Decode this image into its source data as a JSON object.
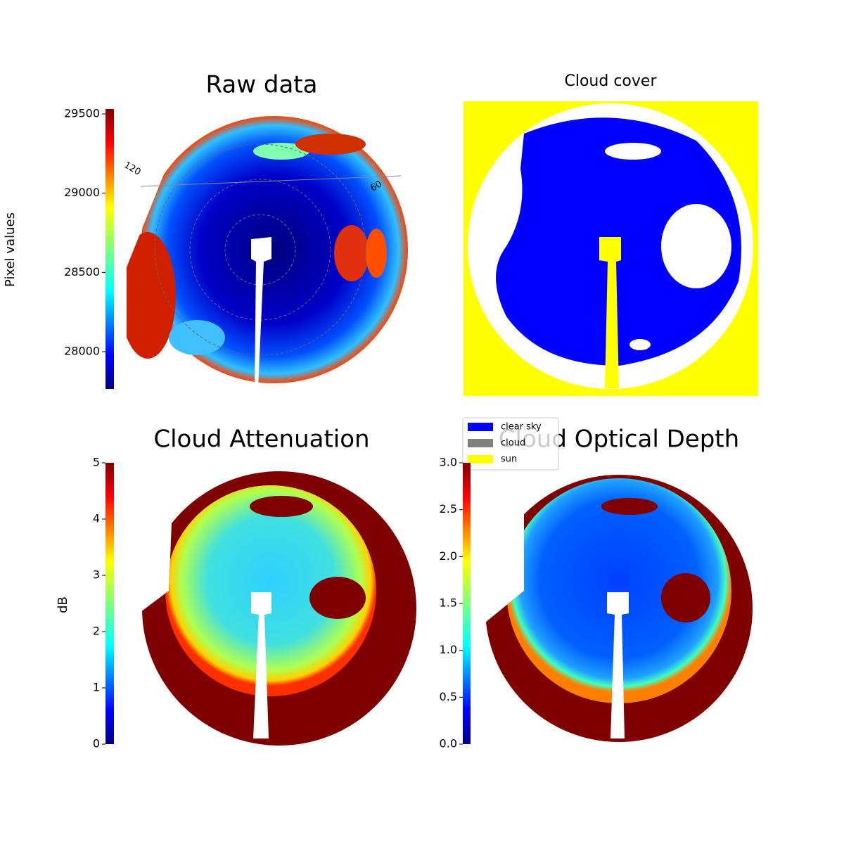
{
  "chart_data": [
    {
      "type": "image",
      "title": "Raw data",
      "ylabel": "Pixel values",
      "colormap": "jet",
      "ylim": [
        27765,
        29531
      ],
      "yticks": [
        28000,
        28500,
        29000,
        29500
      ],
      "annotations": [
        "120",
        "60"
      ]
    },
    {
      "type": "mask",
      "title": "Cloud cover",
      "legend": [
        {
          "name": "clear sky",
          "color": "#0000ff"
        },
        {
          "name": "cloud",
          "color": "#808080"
        },
        {
          "name": "sun",
          "color": "#ffff00"
        }
      ]
    },
    {
      "type": "image",
      "title": "Cloud Attenuation",
      "ylabel": "dB",
      "colormap": "jet",
      "ylim": [
        0,
        5
      ],
      "yticks": [
        0,
        1,
        2,
        3,
        4,
        5
      ]
    },
    {
      "type": "image",
      "title": "Cloud Optical Depth",
      "colormap": "jet",
      "ylim": [
        0,
        3
      ],
      "yticks": [
        {
          "value": 0,
          "label": "0.0"
        },
        0.5,
        {
          "value": 1,
          "label": "1.0"
        },
        1.5,
        {
          "value": 2,
          "label": "2.0"
        },
        2.5,
        {
          "value": 3,
          "label": "3.0"
        }
      ]
    }
  ]
}
